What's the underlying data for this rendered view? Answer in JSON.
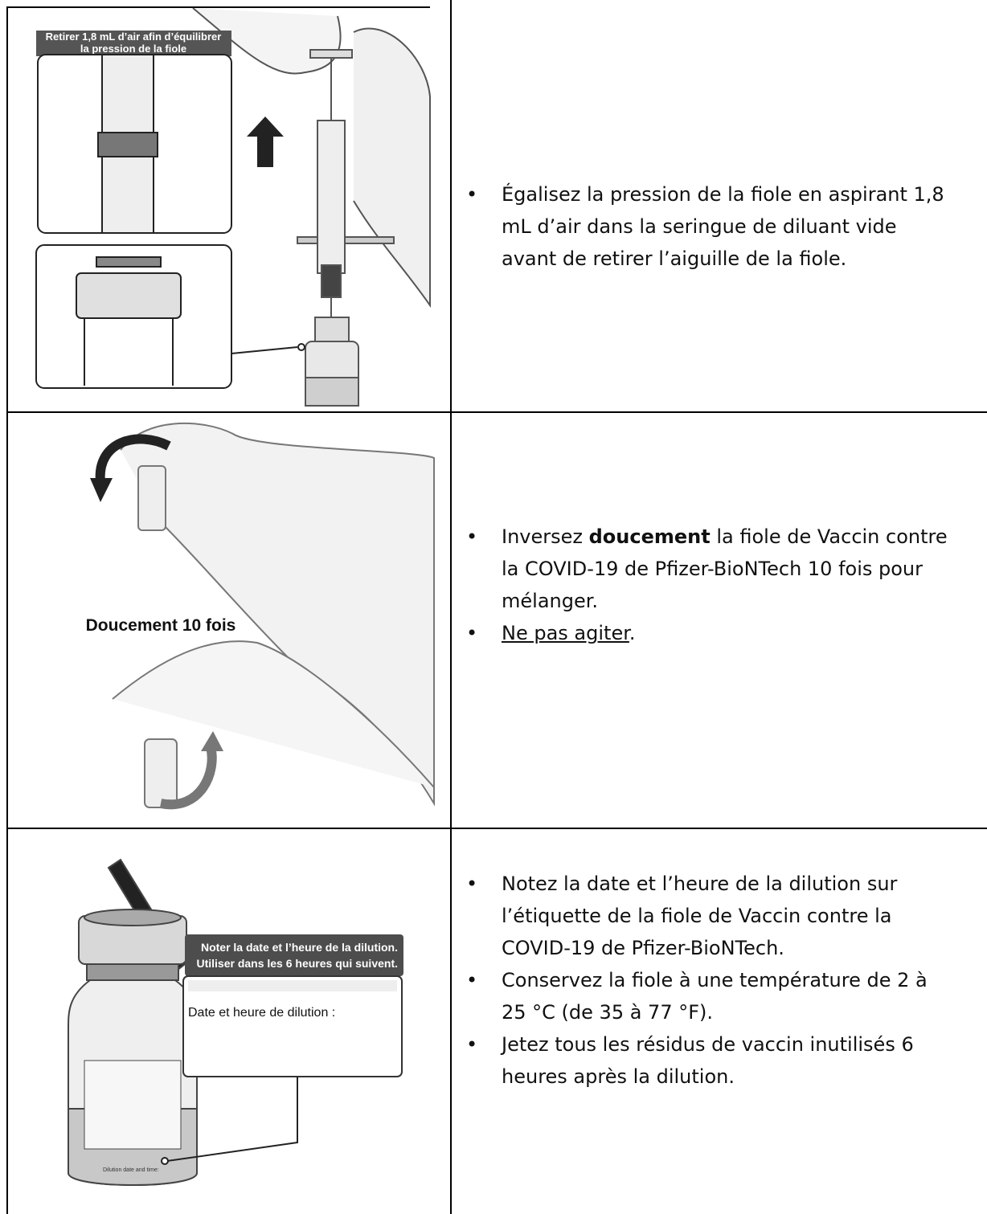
{
  "rows": [
    {
      "image_texts": [
        "Retirer 1,8 mL d’air afin d’équilibrer",
        "la pression de la fiole"
      ],
      "bullets": [
        {
          "segments": [
            "Égalisez la pression de la fiole en aspirant 1,8 mL d’air dans la seringue de diluant vide avant de retirer l’aiguille de la fiole."
          ]
        }
      ]
    },
    {
      "image_texts": [
        "Doucement 10 fois"
      ],
      "bullets": [
        {
          "segments": [
            "Inversez ",
            {
              "text": "doucement",
              "style": "bold"
            },
            " la fiole de Vaccin contre la COVID-19 de Pfizer-BioNTech 10 fois pour mélanger."
          ]
        },
        {
          "segments": [
            {
              "text": "Ne pas agiter",
              "style": "underline"
            },
            "."
          ]
        }
      ]
    },
    {
      "image_texts": [
        "Noter la date et l’heure de la dilution.",
        "Utiliser dans les 6 heures qui suivent.",
        "Date et heure de dilution :",
        "Dilution date and time:"
      ],
      "bullets": [
        {
          "segments": [
            "Notez la date et l’heure de la dilution sur l’étiquette de la fiole de Vaccin contre la COVID-19 de Pfizer-BioNTech."
          ]
        },
        {
          "segments": [
            "Conservez la fiole à une température de 2 à 25 °C (de 35 à 77 °F)."
          ]
        },
        {
          "segments": [
            "Jetez tous les résidus de vaccin inutilisés 6 heures après la dilution."
          ]
        }
      ]
    }
  ]
}
